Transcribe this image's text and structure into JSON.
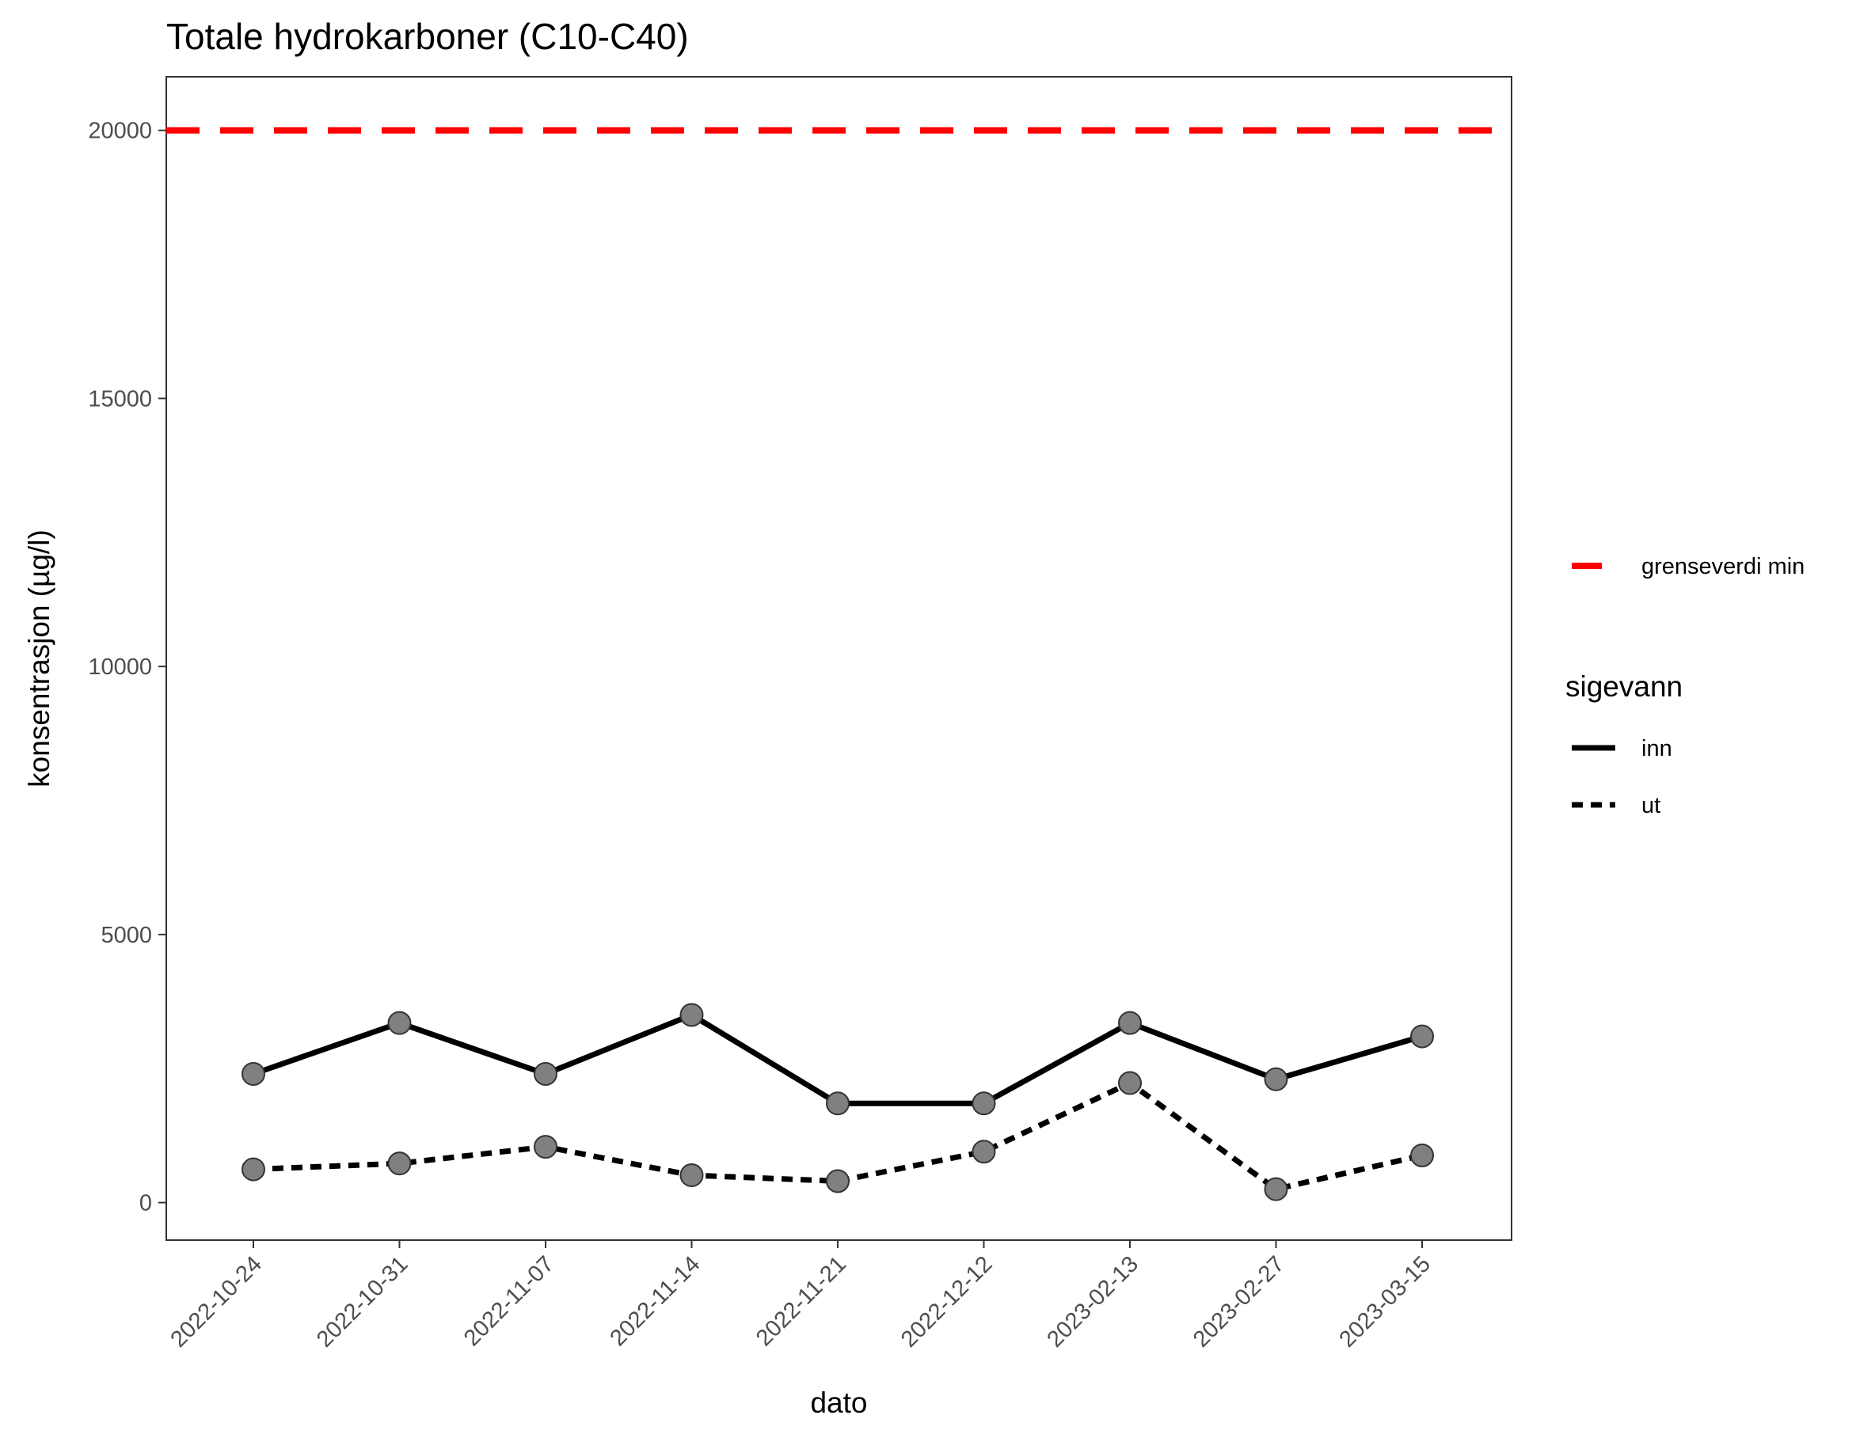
{
  "chart_data": {
    "type": "line",
    "title": "Totale hydrokarboner (C10-C40)",
    "xlabel": "dato",
    "ylabel": "konsentrasjon (µg/l)",
    "x": [
      "2022-10-24",
      "2022-10-31",
      "2022-11-07",
      "2022-11-14",
      "2022-11-21",
      "2022-12-12",
      "2023-02-13",
      "2023-02-27",
      "2023-03-15"
    ],
    "ylim": [
      -700,
      21000
    ],
    "yticks": [
      "0",
      "5000",
      "10000",
      "15000",
      "20000"
    ],
    "grid": false,
    "legend_position": "right",
    "legend_title": "sigevann",
    "series": [
      {
        "name": "inn",
        "linetype": "solid",
        "values": [
          2400,
          3350,
          2400,
          3500,
          1850,
          1850,
          3350,
          2300,
          3100
        ]
      },
      {
        "name": "ut",
        "linetype": "dashed",
        "values": [
          620,
          730,
          1040,
          510,
          400,
          950,
          2230,
          250,
          880
        ]
      }
    ],
    "reference_line": {
      "name": "grenseverdi min",
      "value": 20000,
      "color": "#ff0000",
      "linetype": "dashed"
    },
    "colors": {
      "line": "#000000",
      "points": "#808080",
      "reference": "#ff0000"
    }
  }
}
